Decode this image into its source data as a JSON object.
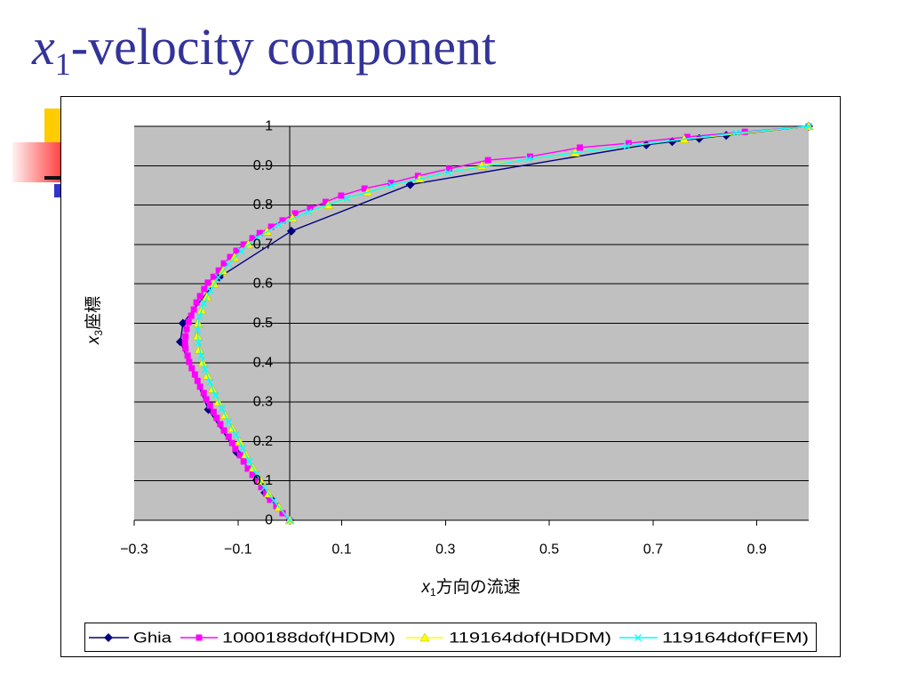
{
  "slide": {
    "title": {
      "variable": "x",
      "subscript": "1",
      "text": "-velocity component"
    },
    "colors": {
      "title": "#333399",
      "decor_yellow": "#FFCC00",
      "decor_blue": "#3333CC",
      "decor_line": "#111111"
    }
  },
  "chart_data": {
    "type": "line",
    "xlabel": {
      "variable": "x",
      "subscript": "1",
      "text": "方向の流速"
    },
    "ylabel": {
      "variable": "x",
      "subscript": "3",
      "text": "座標"
    },
    "xlim": [
      -0.3,
      1.0
    ],
    "ylim": [
      0,
      1
    ],
    "x_tick_labels": [
      "−0.3",
      "−0.1",
      "0.1",
      "0.3",
      "0.5",
      "0.7",
      "0.9"
    ],
    "y_tick_labels": [
      "0",
      "0.1",
      "0.2",
      "0.3",
      "0.4",
      "0.5",
      "0.6",
      "0.7",
      "0.8",
      "0.9",
      "1"
    ],
    "grid": "horizontal",
    "legend_position": "bottom",
    "plot_background": "#C0C0C0",
    "series": [
      {
        "name": "Ghia",
        "color": "#000080",
        "marker": "diamond",
        "points": [
          [
            1,
            1
          ],
          [
            0.841,
            0.977
          ],
          [
            0.789,
            0.969
          ],
          [
            0.737,
            0.961
          ],
          [
            0.687,
            0.953
          ],
          [
            0.232,
            0.852
          ],
          [
            0.003,
            0.734
          ],
          [
            -0.136,
            0.617
          ],
          [
            -0.206,
            0.5
          ],
          [
            -0.211,
            0.453
          ],
          [
            -0.157,
            0.281
          ],
          [
            -0.102,
            0.172
          ],
          [
            -0.064,
            0.102
          ],
          [
            -0.048,
            0.07
          ],
          [
            -0.042,
            0.063
          ],
          [
            -0.037,
            0.055
          ],
          [
            0,
            0
          ]
        ]
      },
      {
        "name": "1000188dof(HDDM)",
        "color": "#FF00FF",
        "marker": "square",
        "points": [
          [
            1,
            1
          ],
          [
            0.877,
            0.986
          ],
          [
            0.766,
            0.973
          ],
          [
            0.653,
            0.957
          ],
          [
            0.559,
            0.946
          ],
          [
            0.463,
            0.923
          ],
          [
            0.382,
            0.914
          ],
          [
            0.307,
            0.892
          ],
          [
            0.247,
            0.874
          ],
          [
            0.195,
            0.856
          ],
          [
            0.144,
            0.842
          ],
          [
            0.099,
            0.824
          ],
          [
            0.069,
            0.808
          ],
          [
            0.039,
            0.792
          ],
          [
            0.01,
            0.779
          ],
          [
            -0.014,
            0.761
          ],
          [
            -0.036,
            0.745
          ],
          [
            -0.058,
            0.729
          ],
          [
            -0.072,
            0.716
          ],
          [
            -0.089,
            0.7
          ],
          [
            -0.103,
            0.684
          ],
          [
            -0.115,
            0.668
          ],
          [
            -0.127,
            0.652
          ],
          [
            -0.137,
            0.634
          ],
          [
            -0.147,
            0.618
          ],
          [
            -0.158,
            0.603
          ],
          [
            -0.165,
            0.587
          ],
          [
            -0.173,
            0.569
          ],
          [
            -0.18,
            0.553
          ],
          [
            -0.185,
            0.535
          ],
          [
            -0.19,
            0.519
          ],
          [
            -0.195,
            0.503
          ],
          [
            -0.199,
            0.485
          ],
          [
            -0.201,
            0.467
          ],
          [
            -0.202,
            0.451
          ],
          [
            -0.201,
            0.436
          ],
          [
            -0.197,
            0.418
          ],
          [
            -0.194,
            0.402
          ],
          [
            -0.189,
            0.386
          ],
          [
            -0.183,
            0.37
          ],
          [
            -0.178,
            0.354
          ],
          [
            -0.173,
            0.339
          ],
          [
            -0.166,
            0.323
          ],
          [
            -0.161,
            0.307
          ],
          [
            -0.154,
            0.291
          ],
          [
            -0.147,
            0.275
          ],
          [
            -0.141,
            0.26
          ],
          [
            -0.134,
            0.244
          ],
          [
            -0.127,
            0.228
          ],
          [
            -0.118,
            0.212
          ],
          [
            -0.111,
            0.196
          ],
          [
            -0.105,
            0.181
          ],
          [
            -0.096,
            0.165
          ],
          [
            -0.089,
            0.149
          ],
          [
            -0.081,
            0.131
          ],
          [
            -0.072,
            0.115
          ],
          [
            -0.063,
            0.099
          ],
          [
            -0.055,
            0.084
          ],
          [
            -0.046,
            0.068
          ],
          [
            -0.038,
            0.052
          ],
          [
            -0.026,
            0.036
          ],
          [
            -0.014,
            0.018
          ],
          [
            0,
            0
          ]
        ]
      },
      {
        "name": "119164dof(HDDM)",
        "color": "#FFFF00",
        "marker": "triangle",
        "points": [
          [
            1,
            1
          ],
          [
            0.76,
            0.967
          ],
          [
            0.55,
            0.933
          ],
          [
            0.37,
            0.9
          ],
          [
            0.25,
            0.867
          ],
          [
            0.15,
            0.833
          ],
          [
            0.074,
            0.8
          ],
          [
            0.005,
            0.767
          ],
          [
            -0.044,
            0.733
          ],
          [
            -0.08,
            0.7
          ],
          [
            -0.107,
            0.667
          ],
          [
            -0.129,
            0.633
          ],
          [
            -0.146,
            0.6
          ],
          [
            -0.16,
            0.567
          ],
          [
            -0.17,
            0.533
          ],
          [
            -0.177,
            0.5
          ],
          [
            -0.178,
            0.467
          ],
          [
            -0.175,
            0.433
          ],
          [
            -0.168,
            0.4
          ],
          [
            -0.159,
            0.367
          ],
          [
            -0.149,
            0.333
          ],
          [
            -0.138,
            0.3
          ],
          [
            -0.125,
            0.267
          ],
          [
            -0.111,
            0.233
          ],
          [
            -0.097,
            0.2
          ],
          [
            -0.085,
            0.167
          ],
          [
            -0.071,
            0.133
          ],
          [
            -0.056,
            0.1
          ],
          [
            -0.041,
            0.067
          ],
          [
            -0.021,
            0.033
          ],
          [
            0,
            0
          ]
        ]
      },
      {
        "name": "119164dof(FEM)",
        "color": "#00FFFF",
        "marker": "cross",
        "points": [
          [
            1,
            1
          ],
          [
            0.86,
            0.983
          ],
          [
            0.65,
            0.95
          ],
          [
            0.46,
            0.917
          ],
          [
            0.305,
            0.883
          ],
          [
            0.196,
            0.85
          ],
          [
            0.11,
            0.817
          ],
          [
            0.036,
            0.783
          ],
          [
            -0.021,
            0.75
          ],
          [
            -0.063,
            0.717
          ],
          [
            -0.094,
            0.683
          ],
          [
            -0.118,
            0.65
          ],
          [
            -0.138,
            0.617
          ],
          [
            -0.153,
            0.583
          ],
          [
            -0.166,
            0.55
          ],
          [
            -0.174,
            0.517
          ],
          [
            -0.178,
            0.483
          ],
          [
            -0.176,
            0.45
          ],
          [
            -0.171,
            0.417
          ],
          [
            -0.163,
            0.383
          ],
          [
            -0.154,
            0.35
          ],
          [
            -0.143,
            0.317
          ],
          [
            -0.131,
            0.283
          ],
          [
            -0.118,
            0.25
          ],
          [
            -0.104,
            0.217
          ],
          [
            -0.091,
            0.183
          ],
          [
            -0.078,
            0.15
          ],
          [
            -0.064,
            0.117
          ],
          [
            -0.049,
            0.083
          ],
          [
            -0.031,
            0.05
          ],
          [
            0,
            0
          ]
        ]
      }
    ]
  }
}
